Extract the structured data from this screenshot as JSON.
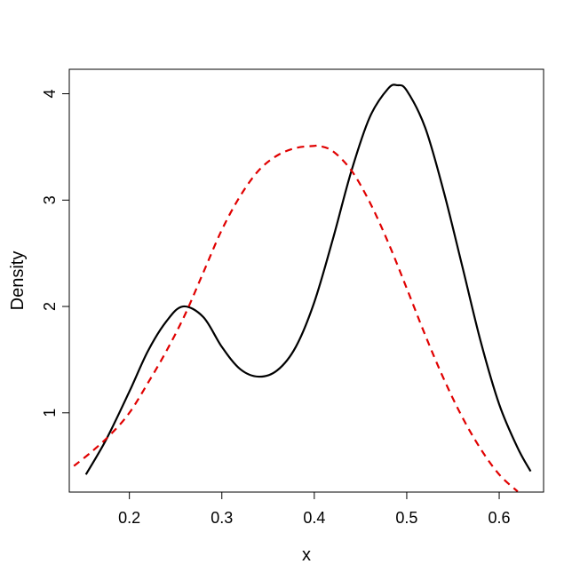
{
  "chart_data": {
    "type": "line",
    "xlabel": "x",
    "ylabel": "Density",
    "xlim": [
      0.135,
      0.648
    ],
    "ylim": [
      0.255,
      4.23
    ],
    "x_ticks": [
      0.2,
      0.3,
      0.4,
      0.5,
      0.6
    ],
    "x_tick_labels": [
      "0.2",
      "0.3",
      "0.4",
      "0.5",
      "0.6"
    ],
    "y_ticks": [
      1,
      2,
      3,
      4
    ],
    "y_tick_labels": [
      "1",
      "2",
      "3",
      "4"
    ],
    "grid": false,
    "legend": "none",
    "series": [
      {
        "style": "solid",
        "color": "#000000",
        "x": [
          0.153,
          0.175,
          0.2,
          0.22,
          0.24,
          0.258,
          0.28,
          0.3,
          0.32,
          0.34,
          0.36,
          0.38,
          0.4,
          0.42,
          0.44,
          0.46,
          0.48,
          0.49,
          0.5,
          0.52,
          0.54,
          0.56,
          0.58,
          0.6,
          0.62,
          0.634
        ],
        "y": [
          0.42,
          0.75,
          1.2,
          1.58,
          1.86,
          2.0,
          1.9,
          1.62,
          1.41,
          1.34,
          1.4,
          1.62,
          2.04,
          2.63,
          3.27,
          3.78,
          4.05,
          4.08,
          4.03,
          3.68,
          3.08,
          2.38,
          1.67,
          1.08,
          0.67,
          0.45
        ]
      },
      {
        "style": "dashed",
        "color": "#e00000",
        "x": [
          0.14,
          0.16,
          0.18,
          0.2,
          0.22,
          0.24,
          0.26,
          0.28,
          0.3,
          0.32,
          0.34,
          0.36,
          0.38,
          0.4,
          0.405,
          0.42,
          0.44,
          0.46,
          0.48,
          0.5,
          0.52,
          0.54,
          0.56,
          0.58,
          0.6,
          0.62
        ],
        "y": [
          0.5,
          0.64,
          0.8,
          1.0,
          1.28,
          1.58,
          1.92,
          2.32,
          2.72,
          3.04,
          3.28,
          3.42,
          3.49,
          3.51,
          3.51,
          3.46,
          3.28,
          2.98,
          2.6,
          2.17,
          1.73,
          1.32,
          0.96,
          0.66,
          0.42,
          0.26
        ]
      }
    ]
  }
}
